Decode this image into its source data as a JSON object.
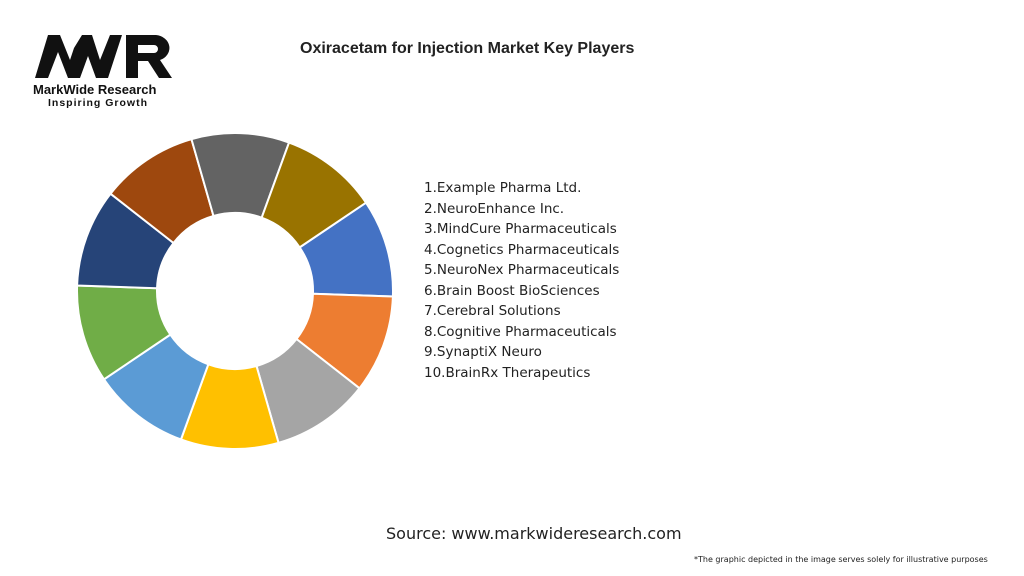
{
  "logo": {
    "mark": "MWR",
    "brand": "MarkWide Research",
    "tagline": "Inspiring Growth"
  },
  "chart_data": {
    "type": "pie",
    "variant": "donut",
    "title": "Oxiracetam for Injection Market Key Players",
    "categories": [
      "1.Example Pharma Ltd.",
      "2.NeuroEnhance Inc.",
      "3.MindCure Pharmaceuticals",
      "4.Cognetics Pharmaceuticals",
      "5.NeuroNex Pharmaceuticals",
      "6.Brain Boost BioSciences",
      "7.Cerebral Solutions",
      "8.Cognitive Pharmaceuticals",
      "9.SynaptiX Neuro",
      "10.BrainRx Therapeutics"
    ],
    "values": [
      10,
      10,
      10,
      10,
      10,
      10,
      10,
      10,
      10,
      10
    ],
    "colors": [
      "#4472C4",
      "#ED7D31",
      "#A5A5A5",
      "#FFC000",
      "#5B9BD5",
      "#70AD47",
      "#264478",
      "#9E480E",
      "#636363",
      "#997300"
    ],
    "legend": "right"
  },
  "source": "Source: www.markwideresearch.com",
  "note": "*The graphic depicted in the image serves solely for illustrative purposes"
}
